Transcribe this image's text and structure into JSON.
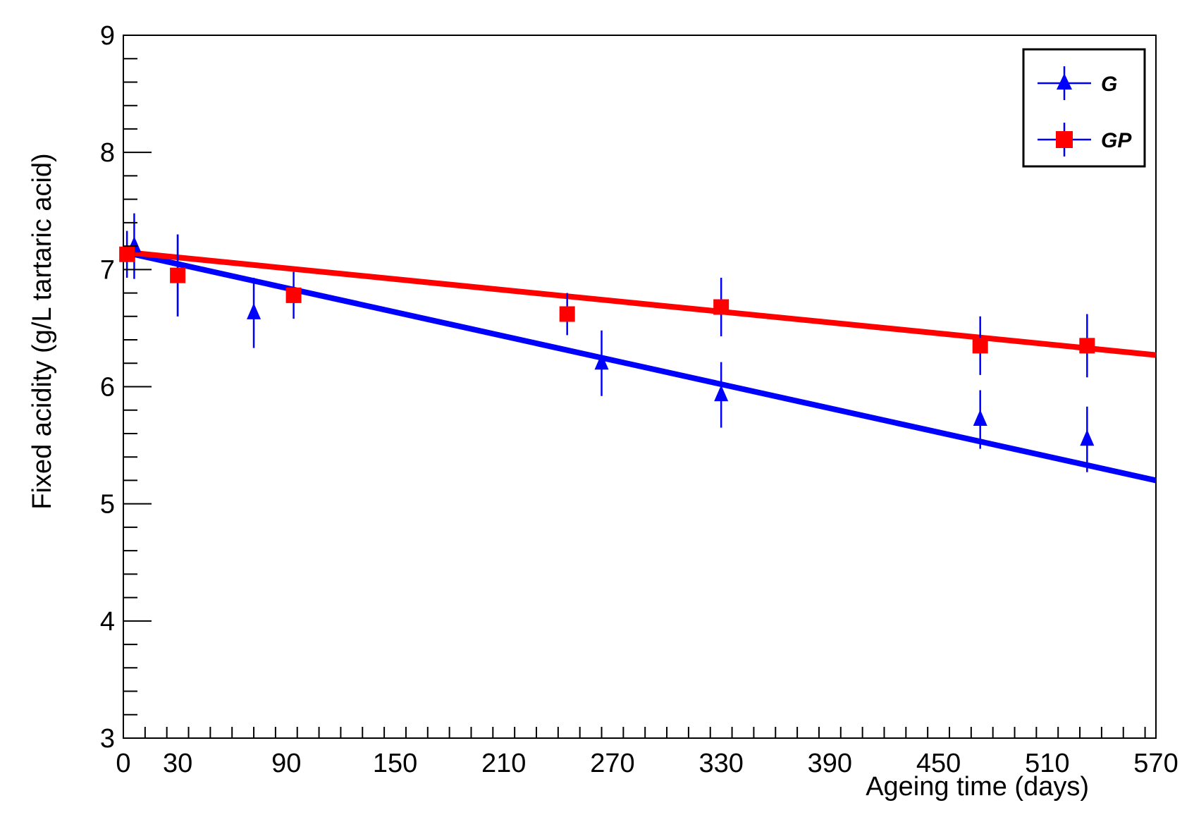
{
  "chart_data": {
    "type": "scatter",
    "title": "",
    "xlabel": "Ageing time (days)",
    "ylabel": "Fixed acidity (g/L tartaric acid)",
    "xlim": [
      0,
      570
    ],
    "ylim": [
      3,
      9
    ],
    "x_ticks": [
      0,
      30,
      90,
      150,
      210,
      270,
      330,
      390,
      450,
      510,
      570
    ],
    "y_ticks": [
      3,
      4,
      5,
      6,
      7,
      8,
      9
    ],
    "x_tick_labels": [
      "0",
      "30",
      "90",
      "150",
      "210",
      "270",
      "330",
      "390",
      "450",
      "510",
      "570"
    ],
    "y_tick_labels": [
      "3",
      "4",
      "5",
      "6",
      "7",
      "8",
      "9"
    ],
    "grid": false,
    "legend_position": "top-right",
    "series": [
      {
        "name": "G",
        "marker": "triangle",
        "color": "#0000ff",
        "points": [
          {
            "x": 6,
            "y": 7.2,
            "err": 0.28
          },
          {
            "x": 30,
            "y": 6.95,
            "err": 0.35
          },
          {
            "x": 72,
            "y": 6.63,
            "err": 0.3
          },
          {
            "x": 264,
            "y": 6.2,
            "err": 0.28
          },
          {
            "x": 330,
            "y": 5.93,
            "err": 0.28
          },
          {
            "x": 473,
            "y": 5.72,
            "err": 0.25
          },
          {
            "x": 532,
            "y": 5.55,
            "err": 0.28
          }
        ],
        "fit": {
          "x": [
            0,
            570
          ],
          "y": [
            7.15,
            5.2
          ]
        }
      },
      {
        "name": "GP",
        "marker": "square",
        "color": "#ff0000",
        "error_color": "#0000ff",
        "points": [
          {
            "x": 2,
            "y": 7.13,
            "err": 0.2
          },
          {
            "x": 30,
            "y": 6.95,
            "err": 0.35
          },
          {
            "x": 94,
            "y": 6.78,
            "err": 0.2
          },
          {
            "x": 245,
            "y": 6.62,
            "err": 0.18
          },
          {
            "x": 330,
            "y": 6.68,
            "err": 0.25
          },
          {
            "x": 473,
            "y": 6.35,
            "err": 0.25
          },
          {
            "x": 532,
            "y": 6.35,
            "err": 0.27
          }
        ],
        "fit": {
          "x": [
            0,
            570
          ],
          "y": [
            7.15,
            6.27
          ]
        }
      }
    ]
  }
}
